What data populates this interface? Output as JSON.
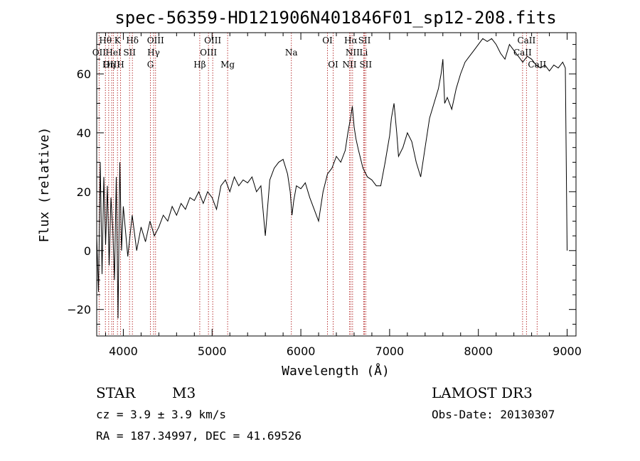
{
  "chart_data": {
    "type": "line",
    "title": "spec-56359-HD121906N401846F01_sp12-208.fits",
    "xlabel": "Wavelength (Å)",
    "ylabel": "Flux (relative)",
    "xlim": [
      3700,
      9100
    ],
    "ylim": [
      -29,
      74
    ],
    "xticks": [
      4000,
      5000,
      6000,
      7000,
      8000,
      9000
    ],
    "yticks": [
      -20,
      0,
      20,
      40,
      60
    ],
    "ytick_labels": [
      "−20",
      "0",
      "20",
      "40",
      "60"
    ],
    "series": [
      {
        "name": "flux",
        "x": [
          3700,
          3720,
          3740,
          3760,
          3780,
          3800,
          3820,
          3840,
          3860,
          3880,
          3900,
          3920,
          3940,
          3960,
          3980,
          4000,
          4050,
          4100,
          4150,
          4200,
          4250,
          4300,
          4350,
          4400,
          4450,
          4500,
          4550,
          4600,
          4650,
          4700,
          4750,
          4800,
          4850,
          4900,
          4950,
          5000,
          5050,
          5100,
          5150,
          5200,
          5250,
          5300,
          5350,
          5400,
          5450,
          5500,
          5550,
          5600,
          5650,
          5700,
          5750,
          5800,
          5850,
          5880,
          5900,
          5920,
          5950,
          6000,
          6050,
          6100,
          6150,
          6200,
          6250,
          6300,
          6350,
          6400,
          6450,
          6500,
          6530,
          6560,
          6580,
          6600,
          6620,
          6650,
          6700,
          6750,
          6800,
          6850,
          6900,
          6950,
          7000,
          7020,
          7050,
          7080,
          7100,
          7150,
          7200,
          7250,
          7300,
          7350,
          7400,
          7450,
          7500,
          7550,
          7580,
          7600,
          7620,
          7650,
          7700,
          7750,
          7800,
          7850,
          7900,
          7950,
          8000,
          8050,
          8100,
          8150,
          8200,
          8250,
          8300,
          8350,
          8400,
          8450,
          8500,
          8550,
          8600,
          8650,
          8700,
          8750,
          8800,
          8850,
          8900,
          8950,
          8980,
          9000
        ],
        "y": [
          5,
          -14,
          30,
          -8,
          25,
          2,
          22,
          -5,
          18,
          8,
          -10,
          25,
          -23,
          30,
          0,
          15,
          -2,
          12,
          0,
          8,
          3,
          10,
          5,
          8,
          12,
          10,
          15,
          12,
          16,
          14,
          18,
          17,
          20,
          16,
          20,
          18,
          14,
          22,
          24,
          20,
          25,
          22,
          24,
          23,
          25,
          20,
          22,
          5,
          24,
          28,
          30,
          31,
          26,
          20,
          12,
          17,
          22,
          21,
          23,
          18,
          14,
          10,
          20,
          26,
          28,
          32,
          30,
          34,
          40,
          45,
          49,
          42,
          38,
          34,
          28,
          25,
          24,
          22,
          22,
          30,
          39,
          45,
          50,
          40,
          32,
          35,
          40,
          37,
          30,
          25,
          35,
          45,
          50,
          55,
          60,
          65,
          50,
          52,
          48,
          55,
          60,
          64,
          66,
          68,
          70,
          72,
          71,
          72,
          70,
          67,
          65,
          70,
          68,
          66,
          64,
          66,
          65,
          63,
          62,
          63,
          61,
          63,
          62,
          64,
          62,
          0
        ]
      }
    ],
    "spectral_lines": [
      {
        "label": "Hθ",
        "wl": 3798,
        "row": 1
      },
      {
        "label": "OII",
        "wl": 3727,
        "row": 2
      },
      {
        "label": "OIII",
        "wl": 3869,
        "row": 3
      },
      {
        "label": "K",
        "wl": 3934,
        "row": 1
      },
      {
        "label": "HeI",
        "wl": 3889,
        "row": 2
      },
      {
        "label": "Hη",
        "wl": 3835,
        "row": 3
      },
      {
        "label": "Hδ",
        "wl": 4102,
        "row": 1
      },
      {
        "label": "SII",
        "wl": 4070,
        "row": 2
      },
      {
        "label": "H",
        "wl": 3969,
        "row": 3
      },
      {
        "label": "OIII",
        "wl": 4363,
        "row": 1
      },
      {
        "label": "Hγ",
        "wl": 4341,
        "row": 2
      },
      {
        "label": "G",
        "wl": 4305,
        "row": 3
      },
      {
        "label": "OIII",
        "wl": 5007,
        "row": 1
      },
      {
        "label": "OIII",
        "wl": 4959,
        "row": 2
      },
      {
        "label": "Hβ",
        "wl": 4861,
        "row": 3
      },
      {
        "label": "Mg",
        "wl": 5175,
        "row": 3
      },
      {
        "label": "Na",
        "wl": 5893,
        "row": 2
      },
      {
        "label": "OI",
        "wl": 6300,
        "row": 1
      },
      {
        "label": "OI",
        "wl": 6364,
        "row": 3
      },
      {
        "label": "Hα",
        "wl": 6563,
        "row": 1
      },
      {
        "label": "NII",
        "wl": 6583,
        "row": 2
      },
      {
        "label": "NII",
        "wl": 6548,
        "row": 3
      },
      {
        "label": "SII",
        "wl": 6717,
        "row": 1
      },
      {
        "label": "Li",
        "wl": 6708,
        "row": 2
      },
      {
        "label": "SII",
        "wl": 6731,
        "row": 3
      },
      {
        "label": "CaII",
        "wl": 8542,
        "row": 1
      },
      {
        "label": "CaII",
        "wl": 8498,
        "row": 2
      },
      {
        "label": "CaII",
        "wl": 8662,
        "row": 3
      }
    ]
  },
  "info": {
    "object_class": "STAR",
    "subclass": "M3",
    "survey": "LAMOST DR3",
    "cz": "cz = 3.9 ± 3.9 km/s",
    "obs_date": "Obs-Date: 20130307",
    "coords": "RA = 187.34997, DEC =  41.69526"
  }
}
